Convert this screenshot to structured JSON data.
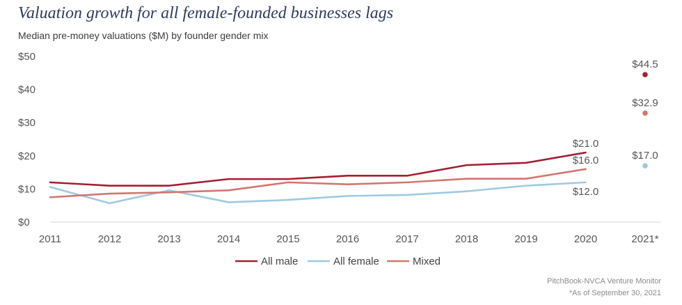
{
  "header": {
    "title": "Valuation growth for all female-founded businesses lags",
    "subtitle": "Median pre-money valuations ($M) by founder gender mix"
  },
  "footer": {
    "source": "PitchBook-NVCA Venture Monitor",
    "note": "*As of September 30, 2021"
  },
  "chart_data": {
    "type": "line",
    "categories": [
      "2011",
      "2012",
      "2013",
      "2014",
      "2015",
      "2016",
      "2017",
      "2018",
      "2019",
      "2020",
      "2021*"
    ],
    "ylim": [
      0,
      50
    ],
    "yticks": [
      0,
      10,
      20,
      30,
      40,
      50
    ],
    "ytick_labels": [
      "$0",
      "$10",
      "$20",
      "$30",
      "$40",
      "$50"
    ],
    "grid": false,
    "legend_position": "bottom",
    "series": [
      {
        "name": "All male",
        "color": "#a31f34",
        "values": [
          12.0,
          11.0,
          11.0,
          13.0,
          13.0,
          14.0,
          14.0,
          17.2,
          17.9,
          21.0,
          44.5
        ],
        "labels": {
          "9": "$21.0",
          "10": "$44.5"
        }
      },
      {
        "name": "All female",
        "color": "#9ecae1",
        "values": [
          10.6,
          5.7,
          9.6,
          6.0,
          6.7,
          7.9,
          8.2,
          9.3,
          11.0,
          12.0,
          17.0
        ],
        "labels": {
          "9": "$12.0",
          "10": "$17.0"
        }
      },
      {
        "name": "Mixed",
        "color": "#d0776f",
        "values": [
          7.5,
          8.6,
          9.0,
          9.6,
          12.0,
          11.4,
          12.0,
          13.1,
          13.1,
          16.0,
          32.9
        ],
        "labels": {
          "9": "$16.0",
          "10": "$32.9"
        }
      }
    ]
  }
}
